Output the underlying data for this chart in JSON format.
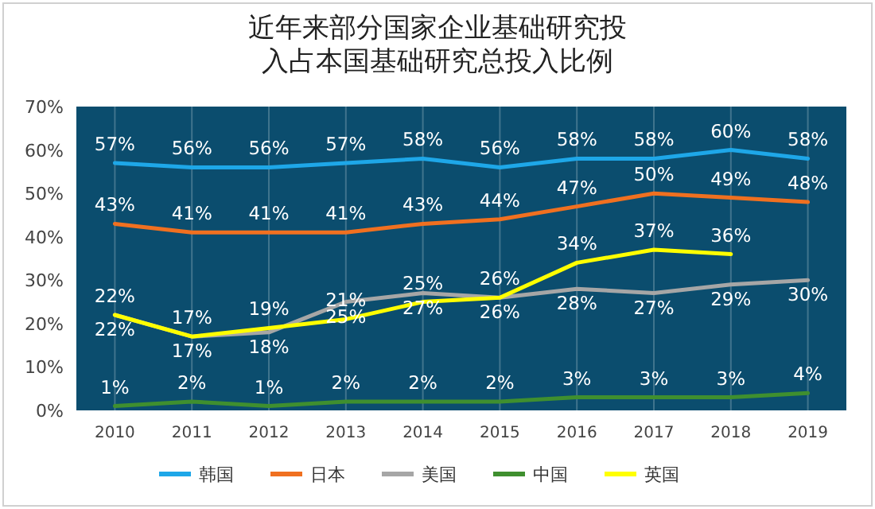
{
  "chart_data": {
    "type": "line",
    "title": "近年来部分国家企业基础研究投入占本国基础研究总投入比例",
    "categories": [
      "2010",
      "2011",
      "2012",
      "2013",
      "2014",
      "2015",
      "2016",
      "2017",
      "2018",
      "2019"
    ],
    "ylim": [
      0,
      70
    ],
    "yticks": [
      {
        "value": 0,
        "label": "0%"
      },
      {
        "value": 10,
        "label": "10%"
      },
      {
        "value": 20,
        "label": "20%"
      },
      {
        "value": 30,
        "label": "30%"
      },
      {
        "value": 40,
        "label": "40%"
      },
      {
        "value": 50,
        "label": "50%"
      },
      {
        "value": 60,
        "label": "60%"
      },
      {
        "value": 70,
        "label": "70%"
      }
    ],
    "grid": "x",
    "legend": "bottom",
    "marker": "none",
    "line_style": "solid",
    "series": [
      {
        "name": "韩国",
        "color": "#1ea7e8",
        "values": [
          57,
          56,
          56,
          57,
          58,
          56,
          58,
          58,
          60,
          58
        ],
        "value_labels": [
          "57%",
          "56%",
          "56%",
          "57%",
          "58%",
          "56%",
          "58%",
          "58%",
          "60%",
          "58%"
        ]
      },
      {
        "name": "日本",
        "color": "#f07020",
        "values": [
          43,
          41,
          41,
          41,
          43,
          44,
          47,
          50,
          49,
          48
        ],
        "value_labels": [
          "43%",
          "41%",
          "41%",
          "41%",
          "43%",
          "44%",
          "47%",
          "50%",
          "49%",
          "48%"
        ]
      },
      {
        "name": "美国",
        "color": "#a6a6a6",
        "values": [
          22,
          17,
          18,
          25,
          27,
          26,
          28,
          27,
          29,
          30
        ],
        "value_labels": [
          "22%",
          "17%",
          "18%",
          "25%",
          "27%",
          "26%",
          "28%",
          "27%",
          "29%",
          "30%"
        ]
      },
      {
        "name": "中国",
        "color": "#3f8f2f",
        "values": [
          1,
          2,
          1,
          2,
          2,
          2,
          3,
          3,
          3,
          4
        ],
        "value_labels": [
          "1%",
          "2%",
          "1%",
          "2%",
          "2%",
          "2%",
          "3%",
          "3%",
          "3%",
          "4%"
        ]
      },
      {
        "name": "英国",
        "color": "#ffff00",
        "values": [
          22,
          17,
          19,
          21,
          25,
          26,
          34,
          37,
          36,
          null
        ],
        "value_labels": [
          "22%",
          "17%",
          "19%",
          "21%",
          "25%",
          "26%",
          "34%",
          "37%",
          "36%",
          null
        ]
      }
    ]
  }
}
